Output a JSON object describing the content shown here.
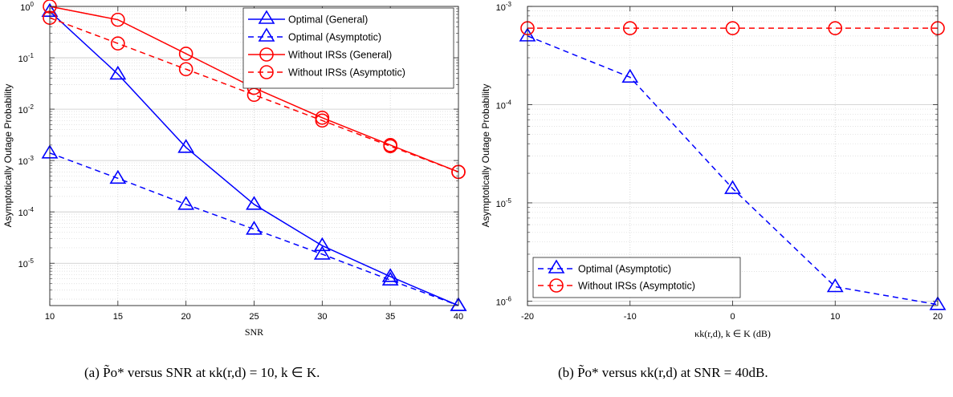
{
  "chart_data": [
    {
      "type": "line",
      "xscale": "linear",
      "yscale": "log",
      "xlim": [
        10,
        40
      ],
      "ylim": [
        1.5e-06,
        1
      ],
      "xticks": [
        10,
        15,
        20,
        25,
        30,
        35,
        40
      ],
      "yticks_exp": [
        -5,
        -4,
        -3,
        -2,
        -1,
        0
      ],
      "xlabel": "SNR",
      "ylabel": "Asymptotically Outage Probability",
      "grid": true,
      "legend_position": "top-right",
      "series": [
        {
          "name": "Optimal (General)",
          "color": "#0000ff",
          "dash": false,
          "marker": "triangle",
          "x": [
            10,
            15,
            20,
            25,
            30,
            35,
            40
          ],
          "y": [
            0.8,
            0.048,
            0.0018,
            0.00014,
            2.2e-05,
            5.5e-06,
            1.5e-06
          ]
        },
        {
          "name": "Optimal (Asymptotic)",
          "color": "#0000ff",
          "dash": true,
          "marker": "triangle",
          "x": [
            10,
            15,
            20,
            25,
            30,
            35,
            40
          ],
          "y": [
            0.0014,
            0.00045,
            0.00014,
            4.6e-05,
            1.5e-05,
            4.7e-06,
            1.5e-06
          ]
        },
        {
          "name": "Without IRSs (General)",
          "color": "#ff0000",
          "dash": false,
          "marker": "circle",
          "x": [
            10,
            15,
            20,
            25,
            30,
            35,
            40
          ],
          "y": [
            1.0,
            0.55,
            0.12,
            0.026,
            0.0068,
            0.002,
            0.0006
          ]
        },
        {
          "name": "Without IRSs (Asymptotic)",
          "color": "#ff0000",
          "dash": true,
          "marker": "circle",
          "x": [
            10,
            15,
            20,
            25,
            30,
            35,
            40
          ],
          "y": [
            0.6,
            0.19,
            0.06,
            0.019,
            0.006,
            0.0019,
            0.0006
          ]
        }
      ]
    },
    {
      "type": "line",
      "xscale": "linear",
      "yscale": "log",
      "xlim": [
        -20,
        20
      ],
      "ylim": [
        9e-07,
        0.001
      ],
      "xticks": [
        -20,
        -10,
        0,
        10,
        20
      ],
      "yticks_exp": [
        -6,
        -5,
        -4,
        -3
      ],
      "xlabel": "κk(r,d), k ∈ K (dB)",
      "ylabel": "Asymptotically Outage Probability",
      "grid": true,
      "legend_position": "bottom-left",
      "series": [
        {
          "name": "Optimal (Asymptotic)",
          "color": "#0000ff",
          "dash": true,
          "marker": "triangle",
          "x": [
            -20,
            -10,
            0,
            10,
            20
          ],
          "y": [
            0.0005,
            0.00019,
            1.4e-05,
            1.4e-06,
            9.2e-07
          ]
        },
        {
          "name": "Without IRSs (Asymptotic)",
          "color": "#ff0000",
          "dash": true,
          "marker": "circle",
          "x": [
            -20,
            -10,
            0,
            10,
            20
          ],
          "y": [
            0.0006,
            0.0006,
            0.0006,
            0.0006,
            0.0006
          ]
        }
      ]
    }
  ],
  "captions": {
    "a": "(a)  P̃o* versus SNR at κk(r,d) = 10, k ∈ K.",
    "b": "(b)  P̃o* versus κk(r,d) at SNR = 40dB."
  }
}
